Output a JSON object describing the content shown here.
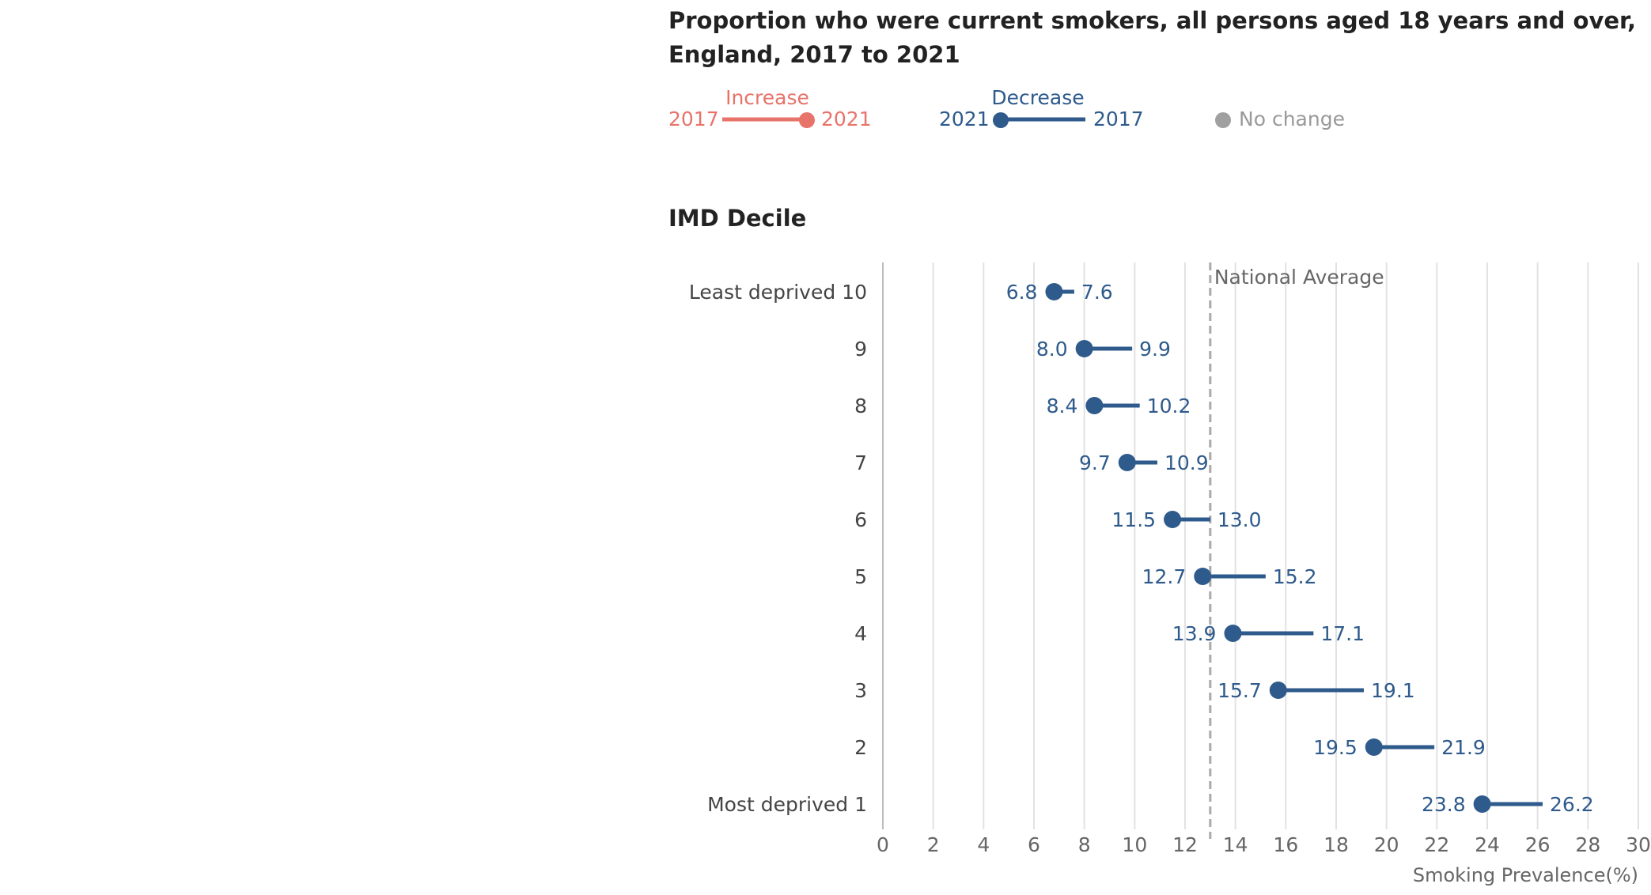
{
  "chart_data": {
    "type": "dumbbell",
    "title_line1": "Proportion who were current smokers, all persons aged 18 years and over,",
    "title_line2": "England, 2017 to 2021",
    "section_label": "IMD Decile",
    "xlabel": "Smoking Prevalence(%)",
    "xlim": [
      0,
      30
    ],
    "xticks": [
      0,
      2,
      4,
      6,
      8,
      10,
      12,
      14,
      16,
      18,
      20,
      22,
      24,
      26,
      28,
      30
    ],
    "national_average": {
      "label": "National Average",
      "value": 13.0
    },
    "legend": {
      "increase": {
        "title": "Increase",
        "from": "2017",
        "to": "2021",
        "color": "#e8736a"
      },
      "decrease": {
        "title": "Decrease",
        "from": "2021",
        "to": "2017",
        "color": "#2e5a8c"
      },
      "no_change": {
        "label": "No change",
        "color": "#a0a0a0"
      }
    },
    "categories": [
      "Least deprived 10",
      "9",
      "8",
      "7",
      "6",
      "5",
      "4",
      "3",
      "2",
      "Most deprived 1"
    ],
    "series": [
      {
        "name": "2021",
        "values": [
          6.8,
          8.0,
          8.4,
          9.7,
          11.5,
          12.7,
          13.9,
          15.7,
          19.5,
          23.8
        ]
      },
      {
        "name": "2017",
        "values": [
          7.6,
          9.9,
          10.2,
          10.9,
          13.0,
          15.2,
          17.1,
          19.1,
          21.9,
          26.2
        ]
      }
    ],
    "value_labels_2021": [
      "6.8",
      "8.0",
      "8.4",
      "9.7",
      "11.5",
      "12.7",
      "13.9",
      "15.7",
      "19.5",
      "23.8"
    ],
    "value_labels_2017": [
      "7.6",
      "9.9",
      "10.2",
      "10.9",
      "13.0",
      "15.2",
      "17.1",
      "19.1",
      "21.9",
      "26.2"
    ]
  }
}
